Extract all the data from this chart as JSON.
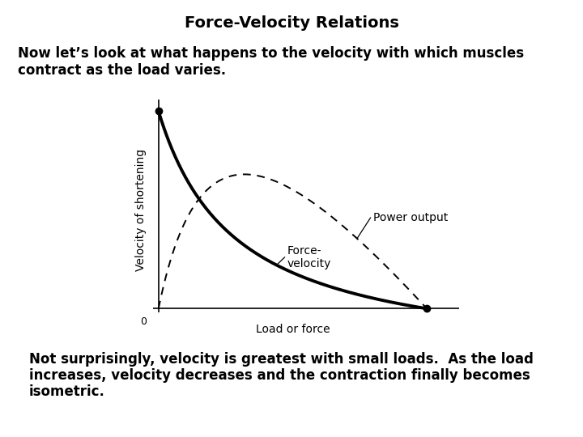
{
  "title": "Force-Velocity Relations",
  "top_text_line1": "Now let’s look at what happens to the velocity with which muscles",
  "top_text_line2": "contract as the load varies.",
  "bottom_text_line1": "Not surprisingly, velocity is greatest with small loads.  As the load",
  "bottom_text_line2": "increases, velocity decreases and the contraction finally becomes",
  "bottom_text_line3": "isometric.",
  "xlabel": "Load or force",
  "ylabel": "Velocity of shortening",
  "fv_label_line1": "Force-",
  "fv_label_line2": "velocity",
  "power_label": "Power output",
  "background_color": "#ffffff",
  "title_fontsize": 14,
  "body_fontsize": 12,
  "axis_label_fontsize": 10,
  "curve_label_fontsize": 10,
  "hill_c": 3.5
}
